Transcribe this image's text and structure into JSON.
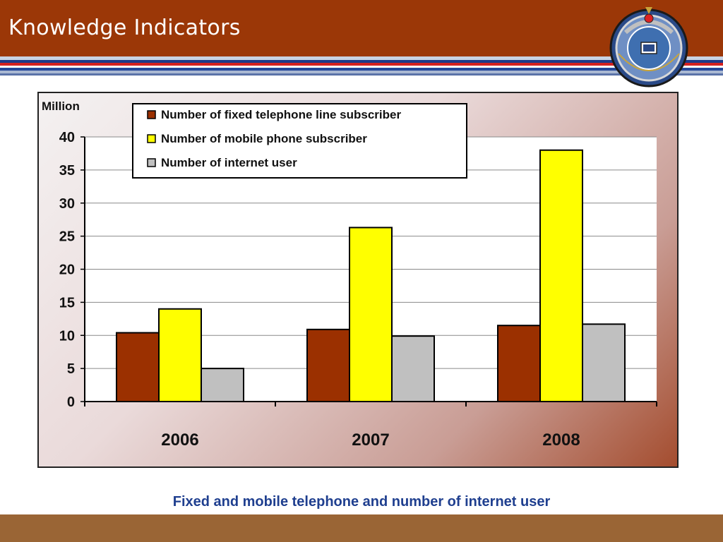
{
  "slide": {
    "title": "Knowledge Indicators",
    "caption": "Fixed and mobile telephone and number of internet user"
  },
  "colors": {
    "header": "#9b3707",
    "footer": "#9a6535",
    "caption": "#1f3f8f"
  },
  "logo": {
    "icon": "emblem-logo-icon"
  },
  "chart_data": {
    "type": "bar",
    "ylabel": "Million",
    "categories": [
      "2006",
      "2007",
      "2008"
    ],
    "series": [
      {
        "name": "Number of fixed telephone line subscriber",
        "color": "#9b3000",
        "values": [
          10.4,
          10.9,
          11.5
        ]
      },
      {
        "name": "Number of mobile phone subscriber",
        "color": "#ffff00",
        "values": [
          14.0,
          26.3,
          38.0
        ]
      },
      {
        "name": "Number of internet user",
        "color": "#c0c0c0",
        "values": [
          5.0,
          9.9,
          11.7
        ]
      }
    ],
    "ylim": [
      0,
      40
    ],
    "yticks": [
      0,
      5,
      10,
      15,
      20,
      25,
      30,
      35,
      40
    ],
    "grid": true,
    "legend": "top"
  }
}
